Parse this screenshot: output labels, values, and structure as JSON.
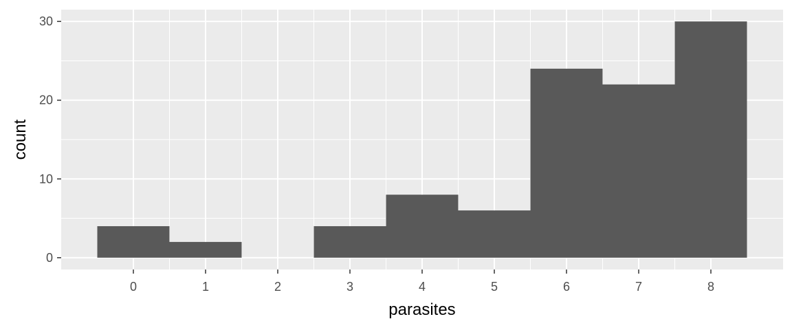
{
  "chart_data": {
    "type": "bar",
    "xlabel": "parasites",
    "ylabel": "count",
    "x": [
      0,
      1,
      2,
      3,
      4,
      5,
      6,
      7,
      8
    ],
    "values": [
      4,
      2,
      0,
      4,
      8,
      6,
      24,
      22,
      30
    ],
    "x_ticks": [
      "0",
      "1",
      "2",
      "3",
      "4",
      "5",
      "6",
      "7",
      "8"
    ],
    "y_ticks": [
      0,
      10,
      20,
      30
    ],
    "xlim": [
      -1,
      9
    ],
    "ylim": [
      -1.5,
      31.5
    ],
    "grid": true,
    "colors": {
      "panel": "#ebebeb",
      "grid": "#ffffff",
      "bar": "#595959",
      "tick_text": "#4d4d4d",
      "tick_mark": "#333333"
    }
  }
}
